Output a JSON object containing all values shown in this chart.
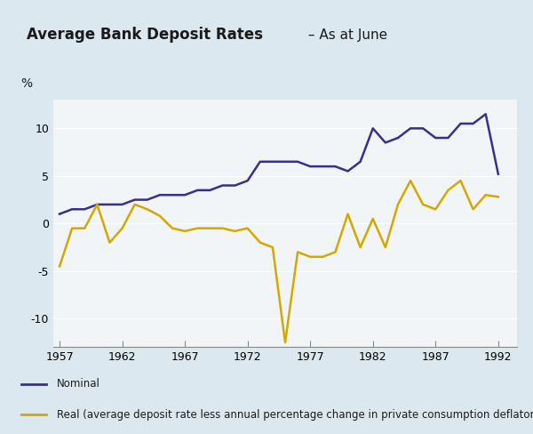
{
  "title_bold": "Average Bank Deposit Rates",
  "title_suffix": " – As at June",
  "ylabel": "%",
  "background_color": "#dce8f0",
  "plot_bg_color": "#f2f5f7",
  "nominal_color": "#3a2d8f",
  "real_color": "#d4a800",
  "years": [
    1957,
    1958,
    1959,
    1960,
    1961,
    1962,
    1963,
    1964,
    1965,
    1966,
    1967,
    1968,
    1969,
    1970,
    1971,
    1972,
    1973,
    1974,
    1975,
    1976,
    1977,
    1978,
    1979,
    1980,
    1981,
    1982,
    1983,
    1984,
    1985,
    1986,
    1987,
    1988,
    1989,
    1990,
    1991,
    1992
  ],
  "nominal": [
    1.0,
    1.5,
    1.5,
    2.0,
    2.0,
    2.0,
    2.5,
    2.5,
    3.0,
    3.0,
    3.0,
    3.5,
    3.5,
    4.0,
    4.0,
    4.5,
    6.5,
    6.5,
    6.5,
    6.5,
    6.0,
    6.0,
    6.0,
    5.5,
    6.5,
    10.0,
    8.5,
    9.0,
    10.0,
    10.0,
    9.0,
    9.0,
    10.5,
    10.5,
    11.5,
    5.2
  ],
  "real": [
    -4.5,
    -0.5,
    -0.5,
    2.0,
    -2.0,
    -0.5,
    2.0,
    1.5,
    0.8,
    -0.5,
    -0.8,
    -0.5,
    -0.5,
    -0.5,
    -0.8,
    -0.5,
    -2.0,
    -2.5,
    -12.5,
    -3.0,
    -3.5,
    -3.5,
    -3.0,
    1.0,
    -2.5,
    0.5,
    -2.5,
    2.0,
    4.5,
    2.0,
    1.5,
    3.5,
    4.5,
    1.5,
    3.0,
    2.8
  ],
  "xticks": [
    1957,
    1962,
    1967,
    1972,
    1977,
    1982,
    1987,
    1992
  ],
  "yticks": [
    -10,
    -5,
    0,
    5,
    10
  ],
  "ylim": [
    -13,
    13
  ],
  "xlim": [
    1956.5,
    1993.5
  ],
  "legend_nominal": "Nominal",
  "legend_real": "Real (average deposit rate less annual percentage change in private consumption deflator"
}
